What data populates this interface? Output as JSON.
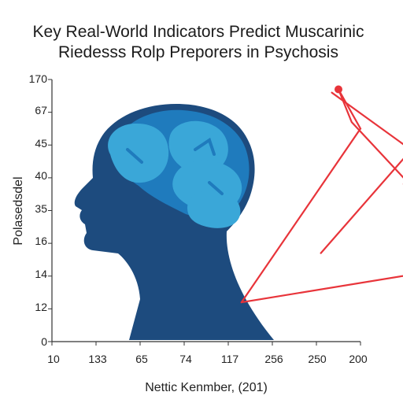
{
  "chart_data": {
    "type": "line",
    "title": "Key Real-World Indicators Predict Muscarinic",
    "subtitle": "Riedesss Rolp Preporers in Psychosis",
    "xlabel": "Nettic Kenmber, (201)",
    "ylabel": "Polasedsdel",
    "x_tick_labels": [
      "10",
      "133",
      "65",
      "74",
      "117",
      "256",
      "250",
      "200"
    ],
    "y_tick_labels": [
      "0",
      "12",
      "14",
      "16",
      "35",
      "40",
      "45",
      "67",
      "170"
    ],
    "grid": false,
    "series": [
      {
        "values": [
          {
            "x": 4.3,
            "y": 1.2
          },
          {
            "x": 7.0,
            "y": 6.5
          },
          {
            "x": 6.5,
            "y": 7.7
          },
          {
            "x": 6.8,
            "y": 6.7
          },
          {
            "x": 8.15,
            "y": 4.75
          }
        ]
      },
      {
        "values": [
          {
            "x": 6.1,
            "y": 2.7
          },
          {
            "x": 8.15,
            "y": 5.85
          },
          {
            "x": 6.35,
            "y": 7.6
          }
        ]
      },
      {
        "values": [
          {
            "x": 4.3,
            "y": 1.2
          },
          {
            "x": 8.4,
            "y": 2.1
          }
        ]
      }
    ],
    "colors": {
      "line": "#e8343a",
      "head_dark": "#1d4b7e",
      "head_mid": "#1f7bbd",
      "brain_light": "#3aa7d8",
      "axis": "#333333"
    },
    "decoration": "head-silhouette-with-brain"
  }
}
